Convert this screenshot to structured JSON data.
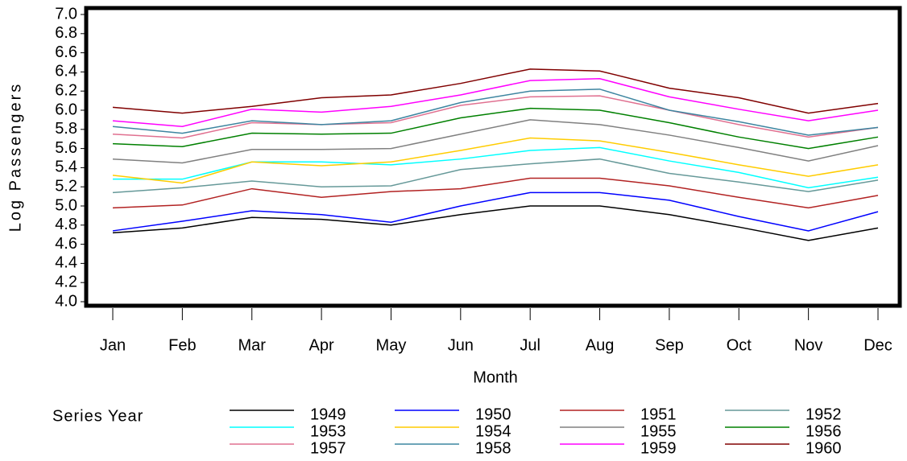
{
  "chart_data": {
    "type": "line",
    "y_label": "Log Passengers",
    "x_label": "Month",
    "legend_title": "Series Year",
    "categories": [
      "Jan",
      "Feb",
      "Mar",
      "Apr",
      "May",
      "Jun",
      "Jul",
      "Aug",
      "Sep",
      "Oct",
      "Nov",
      "Dec"
    ],
    "ylim": [
      4.0,
      7.0
    ],
    "yticks": [
      {
        "value": 4.0,
        "label": "4.0"
      },
      4.2,
      4.4,
      4.6,
      4.8,
      {
        "value": 5.0,
        "label": "5.0"
      },
      5.2,
      5.4,
      5.6,
      5.8,
      {
        "value": 6.0,
        "label": "6.0"
      },
      6.2,
      6.4,
      6.6,
      6.8,
      {
        "value": 7.0,
        "label": "7.0"
      }
    ],
    "grid": false,
    "series": [
      {
        "name": "1949",
        "color": "#000000",
        "values": [
          4.72,
          4.77,
          4.88,
          4.86,
          4.8,
          4.91,
          5.0,
          5.0,
          4.91,
          4.78,
          4.64,
          4.77
        ]
      },
      {
        "name": "1950",
        "color": "#0000ff",
        "values": [
          4.74,
          4.84,
          4.95,
          4.91,
          4.83,
          5.0,
          5.14,
          5.14,
          5.06,
          4.89,
          4.74,
          4.94
        ]
      },
      {
        "name": "1951",
        "color": "#b22222",
        "values": [
          4.98,
          5.01,
          5.18,
          5.09,
          5.15,
          5.18,
          5.29,
          5.29,
          5.21,
          5.09,
          4.98,
          5.11
        ]
      },
      {
        "name": "1952",
        "color": "#669999",
        "values": [
          5.14,
          5.19,
          5.26,
          5.2,
          5.21,
          5.38,
          5.44,
          5.49,
          5.34,
          5.25,
          5.15,
          5.27
        ]
      },
      {
        "name": "1953",
        "color": "#00ffff",
        "values": [
          5.28,
          5.28,
          5.46,
          5.46,
          5.43,
          5.49,
          5.58,
          5.61,
          5.47,
          5.35,
          5.19,
          5.3
        ]
      },
      {
        "name": "1954",
        "color": "#ffcc00",
        "values": [
          5.32,
          5.24,
          5.46,
          5.42,
          5.46,
          5.58,
          5.71,
          5.68,
          5.56,
          5.43,
          5.31,
          5.43
        ]
      },
      {
        "name": "1955",
        "color": "#808080",
        "values": [
          5.49,
          5.45,
          5.59,
          5.59,
          5.6,
          5.75,
          5.9,
          5.85,
          5.74,
          5.61,
          5.47,
          5.63
        ]
      },
      {
        "name": "1956",
        "color": "#008000",
        "values": [
          5.65,
          5.62,
          5.76,
          5.75,
          5.76,
          5.92,
          6.02,
          6.0,
          5.87,
          5.72,
          5.6,
          5.72
        ]
      },
      {
        "name": "1957",
        "color": "#e07090",
        "values": [
          5.75,
          5.71,
          5.87,
          5.85,
          5.87,
          6.05,
          6.14,
          6.15,
          6.0,
          5.85,
          5.72,
          5.82
        ]
      },
      {
        "name": "1958",
        "color": "#3d85a0",
        "values": [
          5.83,
          5.76,
          5.89,
          5.85,
          5.89,
          6.08,
          6.2,
          6.22,
          6.0,
          5.88,
          5.74,
          5.82
        ]
      },
      {
        "name": "1959",
        "color": "#ff00ff",
        "values": [
          5.89,
          5.83,
          6.01,
          5.98,
          6.04,
          6.16,
          6.31,
          6.33,
          6.14,
          6.01,
          5.89,
          6.0
        ]
      },
      {
        "name": "1960",
        "color": "#800000",
        "values": [
          6.03,
          5.97,
          6.04,
          6.13,
          6.16,
          6.28,
          6.43,
          6.41,
          6.23,
          6.13,
          5.97,
          6.07
        ]
      }
    ]
  }
}
